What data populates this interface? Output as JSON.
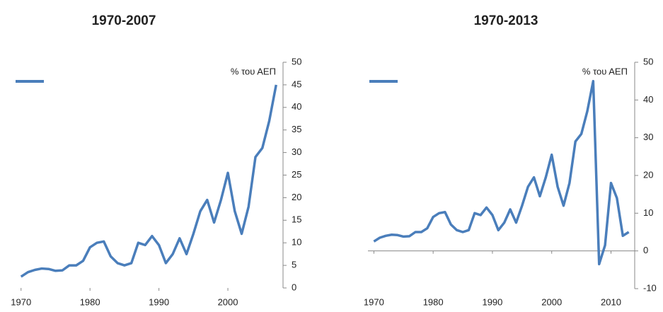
{
  "chart_data": [
    {
      "type": "line",
      "title": "1970-2007",
      "y_label": "% του ΑΕΠ",
      "x": [
        1970,
        1971,
        1972,
        1973,
        1974,
        1975,
        1976,
        1977,
        1978,
        1979,
        1980,
        1981,
        1982,
        1983,
        1984,
        1985,
        1986,
        1987,
        1988,
        1989,
        1990,
        1991,
        1992,
        1993,
        1994,
        1995,
        1996,
        1997,
        1998,
        1999,
        2000,
        2001,
        2002,
        2003,
        2004,
        2005,
        2006,
        2007
      ],
      "series": [
        {
          "color": "#4a7ebb",
          "values": [
            2.5,
            3.5,
            4,
            4.3,
            4.2,
            3.8,
            3.9,
            5,
            5,
            6,
            9,
            10,
            10.3,
            7,
            5.5,
            5,
            5.5,
            10,
            9.5,
            11.5,
            9.5,
            5.5,
            7.5,
            11,
            7.5,
            12,
            17,
            19.5,
            14.5,
            19.5,
            25.5,
            17,
            12,
            18,
            29,
            31,
            37,
            45
          ]
        }
      ],
      "xlim": [
        1969,
        2008
      ],
      "xticks": [
        1970,
        1980,
        1990,
        2000
      ],
      "ylim": [
        0,
        50
      ],
      "yticks": [
        0,
        5,
        10,
        15,
        20,
        25,
        30,
        35,
        40,
        45,
        50
      ]
    },
    {
      "type": "line",
      "title": "1970-2013",
      "y_label": "% του ΑΕΠ",
      "x": [
        1970,
        1971,
        1972,
        1973,
        1974,
        1975,
        1976,
        1977,
        1978,
        1979,
        1980,
        1981,
        1982,
        1983,
        1984,
        1985,
        1986,
        1987,
        1988,
        1989,
        1990,
        1991,
        1992,
        1993,
        1994,
        1995,
        1996,
        1997,
        1998,
        1999,
        2000,
        2001,
        2002,
        2003,
        2004,
        2005,
        2006,
        2007,
        2008,
        2009,
        2010,
        2011,
        2012,
        2013
      ],
      "series": [
        {
          "color": "#4a7ebb",
          "values": [
            2.5,
            3.5,
            4,
            4.3,
            4.2,
            3.8,
            3.9,
            5,
            5,
            6,
            9,
            10,
            10.3,
            7,
            5.5,
            5,
            5.5,
            10,
            9.5,
            11.5,
            9.5,
            5.5,
            7.5,
            11,
            7.5,
            12,
            17,
            19.5,
            14.5,
            19.5,
            25.5,
            17,
            12,
            18,
            29,
            31,
            37,
            45,
            -3.5,
            1.5,
            18,
            14,
            4,
            5
          ]
        }
      ],
      "xlim": [
        1969,
        2014
      ],
      "xticks": [
        1970,
        1980,
        1990,
        2000,
        2010
      ],
      "ylim": [
        -10,
        50
      ],
      "yticks": [
        -10,
        0,
        10,
        20,
        30,
        40,
        50
      ]
    }
  ]
}
